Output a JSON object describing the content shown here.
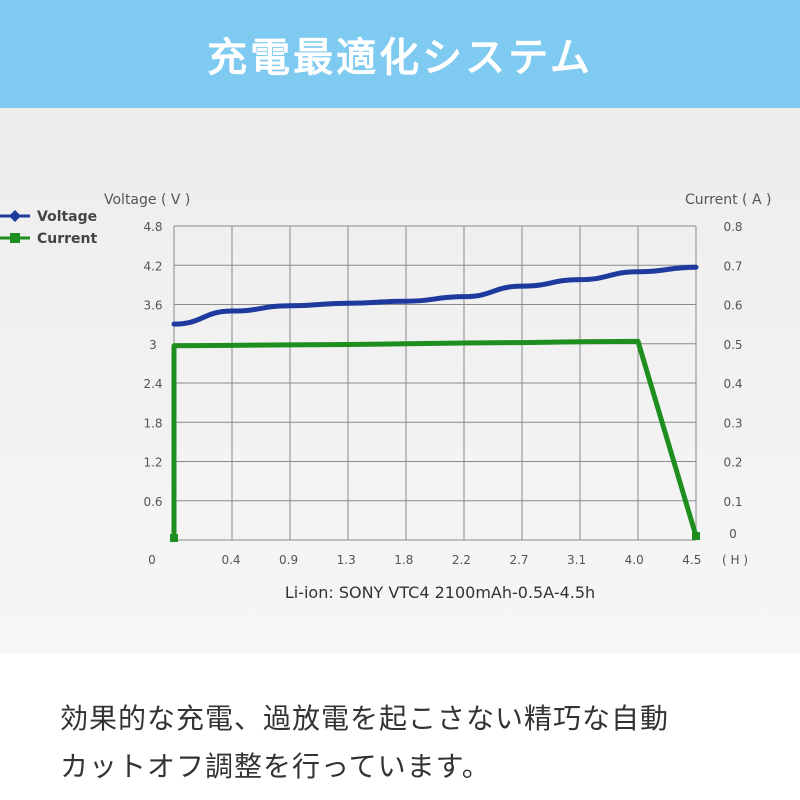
{
  "header": {
    "title": "充電最適化システム"
  },
  "chart_data": {
    "type": "line",
    "subtitle": "Li-ion: SONY VTC4 2100mAh-0.5A-4.5h",
    "ylabel": "Voltage ( V )",
    "y2label": "Current ( A )",
    "xunit": "( H )",
    "grid": true,
    "legend_position": "top-left",
    "x_ticks": [
      "0",
      "0.4",
      "0.9",
      "1.3",
      "1.8",
      "2.2",
      "2.7",
      "3.1",
      "4.0",
      "4.5"
    ],
    "y_ticks": [
      "0",
      "0.6",
      "1.2",
      "1.8",
      "2.4",
      "3",
      "3.6",
      "4.2",
      "4.8"
    ],
    "y2_ticks": [
      "0",
      "0.1",
      "0.2",
      "0.3",
      "0.4",
      "0.5",
      "0.6",
      "0.7",
      "0.8"
    ],
    "series": [
      {
        "name": "Voltage",
        "axis": "left",
        "color": "#1f3a9e",
        "marker": "diamond",
        "x": [
          0,
          0.4,
          0.9,
          1.3,
          1.8,
          2.2,
          2.7,
          3.1,
          4.0,
          4.5
        ],
        "y": [
          3.3,
          3.5,
          3.58,
          3.62,
          3.65,
          3.72,
          3.88,
          3.98,
          4.1,
          4.17
        ]
      },
      {
        "name": "Current",
        "axis": "right",
        "color": "#1e8e1e",
        "marker": "square",
        "x": [
          0,
          0,
          0.4,
          0.9,
          1.3,
          1.8,
          2.2,
          2.7,
          3.1,
          4.0,
          4.5
        ],
        "y": [
          0.005,
          0.495,
          0.496,
          0.497,
          0.498,
          0.5,
          0.502,
          0.503,
          0.505,
          0.506,
          0.01
        ]
      }
    ]
  },
  "footer": {
    "line1": "効果的な充電、過放電を起こさない精巧な自動",
    "line2": "カットオフ調整を行っています。"
  }
}
